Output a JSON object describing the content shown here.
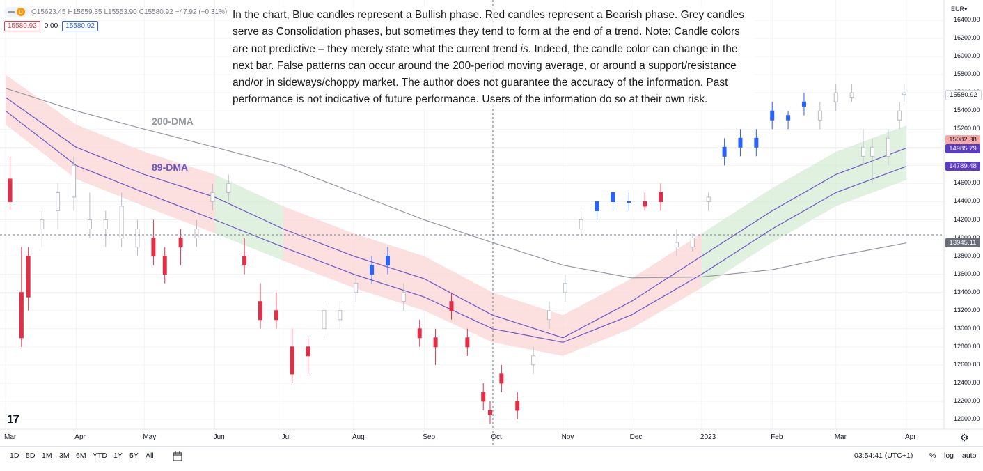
{
  "header": {
    "day_badge": "D",
    "ohlc": [
      {
        "label": "O",
        "value": "15623.45"
      },
      {
        "label": "H",
        "value": "15659.35"
      },
      {
        "label": "L",
        "value": "15553.90"
      },
      {
        "label": "C",
        "value": "15580.92"
      },
      {
        "label": "",
        "value": "−47.92 (−0.31%)"
      }
    ],
    "sell_box": "15580.92",
    "spread": "0.00",
    "buy_box": "15580.92"
  },
  "note": {
    "part1": "In the chart, Blue candles represent a Bullish phase. Red candles represent a Bearish phase. Grey candles serve as Consolidation phases, but sometimes they tend to form at the end of a trend. Note: Candle colors are not predictive – they merely state what the current trend ",
    "emph": "is",
    "part2": ". Indeed, the candle color can change in the next bar. False patterns can occur around the 200-period moving average, or around a support/resistance and/or in sideways/choppy market. The author does not guarantee the accuracy of the information. Past performance is not indicative of future performance. Users of the information do so at their own risk."
  },
  "labels": {
    "dma200": "200-DMA",
    "dma89": "89-DMA"
  },
  "currency": "EUR▾",
  "price_tags": [
    {
      "text": "15580.92",
      "value": 15580.92,
      "color": "#ffffff",
      "text_color": "#131722"
    },
    {
      "text": "15082.38",
      "value": 15082.38,
      "color": "#f7a9a8",
      "text_color": "#131722"
    },
    {
      "text": "14985.79",
      "value": 14985.79,
      "color": "#5b3cc4",
      "text_color": "#ffffff"
    },
    {
      "text": "14789.48",
      "value": 14789.48,
      "color": "#5b3cc4",
      "text_color": "#ffffff"
    },
    {
      "text": "13945.11",
      "value": 13945.11,
      "color": "#6a6d78",
      "text_color": "#ffffff"
    }
  ],
  "bottom": {
    "timeframes": [
      "1D",
      "5D",
      "1M",
      "3M",
      "6M",
      "YTD",
      "1Y",
      "5Y",
      "All"
    ],
    "clock": "03:54:41 (UTC+1)",
    "pct": "%",
    "log": "log",
    "auto": "auto"
  },
  "colors": {
    "bull": "#2962ff",
    "bear": "#e03048",
    "neutral": "#b8bcc4",
    "dma200": "#9598a1",
    "dma89": "#6a55c8",
    "cloud_bull": "#d6ecd6",
    "cloud_bear": "#fbd6d6"
  },
  "chart_data": {
    "type": "candlestick",
    "title": "",
    "ylim": [
      11800,
      16600
    ],
    "y_ticks": [
      12000,
      12200,
      12400,
      12600,
      12800,
      13000,
      13200,
      13400,
      13600,
      13800,
      14000,
      14200,
      14400,
      14600,
      14800,
      15000,
      15200,
      15400,
      15600,
      15800,
      16000,
      16200,
      16400
    ],
    "x_ticks": [
      "Mar",
      "Apr",
      "May",
      "Jun",
      "Jul",
      "Aug",
      "Sep",
      "Oct",
      "Nov",
      "Dec",
      "2023",
      "Feb",
      "Mar",
      "Apr"
    ],
    "series": [
      {
        "name": "200-DMA",
        "type": "line",
        "values": [
          [
            "2022-03-01",
            15650
          ],
          [
            "2022-04-01",
            15400
          ],
          [
            "2022-05-01",
            15200
          ],
          [
            "2022-06-01",
            15000
          ],
          [
            "2022-07-01",
            14800
          ],
          [
            "2022-08-01",
            14500
          ],
          [
            "2022-09-01",
            14200
          ],
          [
            "2022-10-01",
            13950
          ],
          [
            "2022-11-01",
            13700
          ],
          [
            "2022-12-01",
            13560
          ],
          [
            "2023-01-01",
            13570
          ],
          [
            "2023-02-01",
            13650
          ],
          [
            "2023-03-01",
            13800
          ],
          [
            "2023-04-01",
            13945
          ]
        ]
      },
      {
        "name": "89-DMA",
        "type": "line",
        "values": [
          [
            "2022-03-01",
            15550
          ],
          [
            "2022-04-01",
            15000
          ],
          [
            "2022-05-01",
            14700
          ],
          [
            "2022-06-01",
            14450
          ],
          [
            "2022-07-01",
            14100
          ],
          [
            "2022-08-01",
            13800
          ],
          [
            "2022-09-01",
            13550
          ],
          [
            "2022-10-01",
            13150
          ],
          [
            "2022-11-01",
            12900
          ],
          [
            "2022-12-01",
            13300
          ],
          [
            "2023-01-01",
            13800
          ],
          [
            "2023-02-01",
            14300
          ],
          [
            "2023-03-01",
            14700
          ],
          [
            "2023-04-01",
            14990
          ]
        ]
      },
      {
        "name": "",
        "type": "line",
        "values": [
          [
            "2022-03-01",
            15400
          ],
          [
            "2022-04-01",
            14800
          ],
          [
            "2022-05-01",
            14500
          ],
          [
            "2022-06-01",
            14200
          ],
          [
            "2022-07-01",
            13900
          ],
          [
            "2022-08-01",
            13600
          ],
          [
            "2022-09-01",
            13350
          ],
          [
            "2022-10-01",
            13000
          ],
          [
            "2022-11-01",
            12850
          ],
          [
            "2022-12-01",
            13150
          ],
          [
            "2023-01-01",
            13600
          ],
          [
            "2023-02-01",
            14100
          ],
          [
            "2023-03-01",
            14500
          ],
          [
            "2023-04-01",
            14790
          ]
        ]
      }
    ],
    "candles": [
      [
        "2022-03-03",
        14650,
        14900,
        14300,
        14400,
        "bear"
      ],
      [
        "2022-03-08",
        13400,
        13900,
        12800,
        12900,
        "bear"
      ],
      [
        "2022-03-11",
        13350,
        13900,
        13200,
        13800,
        "bear"
      ],
      [
        "2022-03-17",
        14200,
        14300,
        13900,
        14100,
        "neutral"
      ],
      [
        "2022-03-24",
        14300,
        14600,
        14100,
        14500,
        "neutral"
      ],
      [
        "2022-03-31",
        14450,
        14900,
        14300,
        14800,
        "neutral"
      ],
      [
        "2022-04-07",
        14200,
        14500,
        14000,
        14100,
        "neutral"
      ],
      [
        "2022-04-14",
        14100,
        14300,
        13900,
        14200,
        "neutral"
      ],
      [
        "2022-04-21",
        14350,
        14500,
        13900,
        14000,
        "neutral"
      ],
      [
        "2022-04-28",
        13900,
        14200,
        13800,
        14100,
        "neutral"
      ],
      [
        "2022-05-05",
        14000,
        14200,
        13700,
        13800,
        "bear"
      ],
      [
        "2022-05-10",
        13800,
        13900,
        13500,
        13600,
        "bear"
      ],
      [
        "2022-05-17",
        13900,
        14100,
        13700,
        14000,
        "bear"
      ],
      [
        "2022-05-24",
        14000,
        14200,
        13900,
        14100,
        "neutral"
      ],
      [
        "2022-05-31",
        14400,
        14600,
        14300,
        14500,
        "neutral"
      ],
      [
        "2022-06-07",
        14500,
        14700,
        14400,
        14600,
        "neutral"
      ],
      [
        "2022-06-14",
        13800,
        14000,
        13600,
        13700,
        "bear"
      ],
      [
        "2022-06-21",
        13300,
        13500,
        13000,
        13100,
        "bear"
      ],
      [
        "2022-06-28",
        13200,
        13400,
        13000,
        13100,
        "bear"
      ],
      [
        "2022-07-05",
        12800,
        13000,
        12400,
        12500,
        "bear"
      ],
      [
        "2022-07-12",
        12700,
        12900,
        12500,
        12800,
        "bear"
      ],
      [
        "2022-07-19",
        13000,
        13300,
        12900,
        13200,
        "neutral"
      ],
      [
        "2022-07-26",
        13100,
        13300,
        13000,
        13200,
        "neutral"
      ],
      [
        "2022-08-02",
        13400,
        13600,
        13300,
        13500,
        "neutral"
      ],
      [
        "2022-08-09",
        13600,
        13800,
        13500,
        13700,
        "blue"
      ],
      [
        "2022-08-16",
        13700,
        13900,
        13600,
        13800,
        "blue"
      ],
      [
        "2022-08-23",
        13400,
        13500,
        13200,
        13300,
        "neutral"
      ],
      [
        "2022-08-30",
        13000,
        13100,
        12800,
        12900,
        "bear"
      ],
      [
        "2022-09-06",
        12800,
        13000,
        12600,
        12900,
        "bear"
      ],
      [
        "2022-09-13",
        13300,
        13400,
        13100,
        13200,
        "bear"
      ],
      [
        "2022-09-20",
        12900,
        13000,
        12700,
        12800,
        "bear"
      ],
      [
        "2022-09-27",
        12300,
        12400,
        12100,
        12200,
        "bear"
      ],
      [
        "2022-09-30",
        12100,
        12200,
        11950,
        12050,
        "bear"
      ],
      [
        "2022-10-05",
        12500,
        12600,
        12300,
        12400,
        "bear"
      ],
      [
        "2022-10-12",
        12200,
        12300,
        12000,
        12100,
        "bear"
      ],
      [
        "2022-10-19",
        12600,
        12800,
        12500,
        12700,
        "neutral"
      ],
      [
        "2022-10-26",
        13100,
        13300,
        13000,
        13200,
        "neutral"
      ],
      [
        "2022-11-02",
        13400,
        13600,
        13300,
        13500,
        "neutral"
      ],
      [
        "2022-11-09",
        14100,
        14300,
        14000,
        14200,
        "neutral"
      ],
      [
        "2022-11-16",
        14300,
        14400,
        14200,
        14400,
        "blue"
      ],
      [
        "2022-11-23",
        14400,
        14500,
        14300,
        14500,
        "blue"
      ],
      [
        "2022-11-30",
        14400,
        14500,
        14300,
        14400,
        "blue"
      ],
      [
        "2022-12-07",
        14400,
        14500,
        14300,
        14350,
        "bear"
      ],
      [
        "2022-12-14",
        14500,
        14600,
        14300,
        14400,
        "bear"
      ],
      [
        "2022-12-21",
        13950,
        14100,
        13800,
        13900,
        "neutral"
      ],
      [
        "2022-12-28",
        13900,
        14050,
        13850,
        14000,
        "neutral"
      ],
      [
        "2023-01-04",
        14400,
        14500,
        14300,
        14450,
        "neutral"
      ],
      [
        "2023-01-11",
        14900,
        15100,
        14800,
        15000,
        "blue"
      ],
      [
        "2023-01-18",
        15000,
        15200,
        14900,
        15100,
        "blue"
      ],
      [
        "2023-01-25",
        15100,
        15200,
        14900,
        15000,
        "blue"
      ],
      [
        "2023-02-01",
        15300,
        15500,
        15200,
        15400,
        "blue"
      ],
      [
        "2023-02-08",
        15300,
        15400,
        15200,
        15350,
        "blue"
      ],
      [
        "2023-02-15",
        15450,
        15600,
        15350,
        15500,
        "blue"
      ],
      [
        "2023-02-22",
        15400,
        15500,
        15200,
        15300,
        "neutral"
      ],
      [
        "2023-03-01",
        15500,
        15700,
        15400,
        15600,
        "neutral"
      ],
      [
        "2023-03-08",
        15600,
        15700,
        15500,
        15550,
        "neutral"
      ],
      [
        "2023-03-13",
        15000,
        15200,
        14800,
        14900,
        "neutral"
      ],
      [
        "2023-03-17",
        14900,
        15100,
        14600,
        15000,
        "neutral"
      ],
      [
        "2023-03-24",
        14900,
        15200,
        14800,
        15100,
        "neutral"
      ],
      [
        "2023-03-29",
        15300,
        15500,
        15200,
        15400,
        "neutral"
      ],
      [
        "2023-03-31",
        15600,
        15700,
        15500,
        15580,
        "neutral"
      ]
    ]
  }
}
